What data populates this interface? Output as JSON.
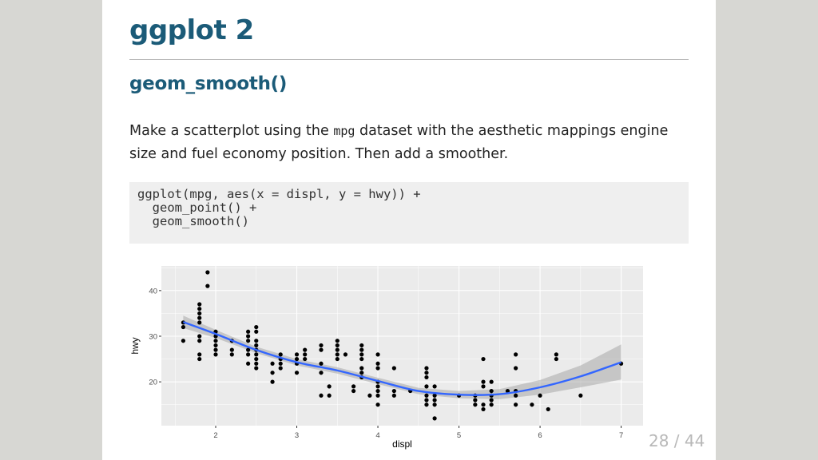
{
  "slide": {
    "title": "ggplot 2",
    "subtitle": "geom_smooth()",
    "paragraph": {
      "before": "Make a scatterplot using the ",
      "code": "mpg",
      "after": " dataset with the aesthetic mappings engine size and fuel economy position. Then add a smoother."
    },
    "code_lines": [
      "ggplot(mpg, aes(x = displ, y = hwy)) +",
      "  geom_point() +",
      "  geom_smooth()"
    ],
    "page_number": "28 / 44"
  },
  "chart_data": {
    "type": "scatter",
    "xlabel": "displ",
    "ylabel": "hwy",
    "xlim": [
      1.33,
      7.27
    ],
    "ylim": [
      10.4,
      45.4
    ],
    "xticks": [
      "2",
      "3",
      "4",
      "5",
      "6",
      "7"
    ],
    "yticks": [
      "20",
      "30",
      "40"
    ],
    "grid": true,
    "colors": {
      "panel": "#ebebeb",
      "grid": "#ffffff",
      "points": "#000000",
      "smooth": "#3366ff",
      "ribbon": "#999999"
    },
    "points": [
      [
        1.6,
        33
      ],
      [
        1.6,
        32
      ],
      [
        1.6,
        29
      ],
      [
        1.8,
        37
      ],
      [
        1.8,
        36
      ],
      [
        1.8,
        35
      ],
      [
        1.8,
        34
      ],
      [
        1.8,
        33
      ],
      [
        1.8,
        30
      ],
      [
        1.8,
        29
      ],
      [
        1.8,
        26
      ],
      [
        1.8,
        25
      ],
      [
        1.9,
        44
      ],
      [
        1.9,
        41
      ],
      [
        2.0,
        31
      ],
      [
        2.0,
        30
      ],
      [
        2.0,
        29
      ],
      [
        2.0,
        28
      ],
      [
        2.0,
        27
      ],
      [
        2.0,
        26
      ],
      [
        2.2,
        29
      ],
      [
        2.2,
        27
      ],
      [
        2.2,
        26
      ],
      [
        2.4,
        31
      ],
      [
        2.4,
        30
      ],
      [
        2.4,
        29
      ],
      [
        2.4,
        27
      ],
      [
        2.4,
        26
      ],
      [
        2.4,
        24
      ],
      [
        2.5,
        32
      ],
      [
        2.5,
        31
      ],
      [
        2.5,
        29
      ],
      [
        2.5,
        28
      ],
      [
        2.5,
        27
      ],
      [
        2.5,
        26
      ],
      [
        2.5,
        25
      ],
      [
        2.5,
        24
      ],
      [
        2.5,
        23
      ],
      [
        2.7,
        24
      ],
      [
        2.7,
        22
      ],
      [
        2.7,
        20
      ],
      [
        2.8,
        26
      ],
      [
        2.8,
        25
      ],
      [
        2.8,
        24
      ],
      [
        2.8,
        23
      ],
      [
        3.0,
        26
      ],
      [
        3.0,
        25
      ],
      [
        3.0,
        24
      ],
      [
        3.0,
        22
      ],
      [
        3.1,
        27
      ],
      [
        3.1,
        26
      ],
      [
        3.1,
        25
      ],
      [
        3.3,
        28
      ],
      [
        3.3,
        27
      ],
      [
        3.3,
        24
      ],
      [
        3.3,
        22
      ],
      [
        3.3,
        17
      ],
      [
        3.4,
        19
      ],
      [
        3.4,
        17
      ],
      [
        3.5,
        29
      ],
      [
        3.5,
        28
      ],
      [
        3.5,
        27
      ],
      [
        3.5,
        26
      ],
      [
        3.5,
        25
      ],
      [
        3.6,
        26
      ],
      [
        3.7,
        19
      ],
      [
        3.7,
        18
      ],
      [
        3.8,
        28
      ],
      [
        3.8,
        27
      ],
      [
        3.8,
        26
      ],
      [
        3.8,
        25
      ],
      [
        3.8,
        23
      ],
      [
        3.8,
        22
      ],
      [
        3.8,
        21
      ],
      [
        3.9,
        17
      ],
      [
        4.0,
        26
      ],
      [
        4.0,
        24
      ],
      [
        4.0,
        23
      ],
      [
        4.0,
        20
      ],
      [
        4.0,
        19
      ],
      [
        4.0,
        18
      ],
      [
        4.0,
        17
      ],
      [
        4.0,
        15
      ],
      [
        4.2,
        23
      ],
      [
        4.2,
        18
      ],
      [
        4.2,
        17
      ],
      [
        4.4,
        18
      ],
      [
        4.6,
        23
      ],
      [
        4.6,
        22
      ],
      [
        4.6,
        21
      ],
      [
        4.6,
        19
      ],
      [
        4.6,
        17
      ],
      [
        4.6,
        16
      ],
      [
        4.6,
        15
      ],
      [
        4.7,
        19
      ],
      [
        4.7,
        17
      ],
      [
        4.7,
        16
      ],
      [
        4.7,
        15
      ],
      [
        4.7,
        12
      ],
      [
        5.0,
        17
      ],
      [
        5.2,
        17
      ],
      [
        5.2,
        16
      ],
      [
        5.2,
        15
      ],
      [
        5.3,
        25
      ],
      [
        5.3,
        20
      ],
      [
        5.3,
        19
      ],
      [
        5.3,
        15
      ],
      [
        5.3,
        14
      ],
      [
        5.4,
        20
      ],
      [
        5.4,
        18
      ],
      [
        5.4,
        17
      ],
      [
        5.4,
        16
      ],
      [
        5.4,
        15
      ],
      [
        5.6,
        18
      ],
      [
        5.7,
        26
      ],
      [
        5.7,
        23
      ],
      [
        5.7,
        18
      ],
      [
        5.7,
        17
      ],
      [
        5.7,
        15
      ],
      [
        5.9,
        15
      ],
      [
        6.0,
        17
      ],
      [
        6.1,
        14
      ],
      [
        6.2,
        26
      ],
      [
        6.2,
        25
      ],
      [
        6.5,
        17
      ],
      [
        7.0,
        24
      ]
    ],
    "smooth": {
      "x": [
        1.6,
        2.0,
        2.5,
        3.0,
        3.5,
        4.0,
        4.5,
        5.0,
        5.5,
        6.0,
        6.5,
        7.0
      ],
      "y": [
        33.1,
        30.5,
        27.0,
        24.3,
        22.5,
        20.2,
        18.0,
        17.2,
        17.3,
        18.8,
        21.2,
        24.3
      ],
      "ymin": [
        31.8,
        29.6,
        26.3,
        23.6,
        21.8,
        19.5,
        17.3,
        16.4,
        16.2,
        17.2,
        18.8,
        20.5
      ],
      "ymax": [
        34.5,
        31.4,
        27.7,
        25.0,
        23.2,
        20.9,
        18.7,
        18.0,
        18.4,
        20.4,
        23.6,
        28.2
      ]
    }
  }
}
